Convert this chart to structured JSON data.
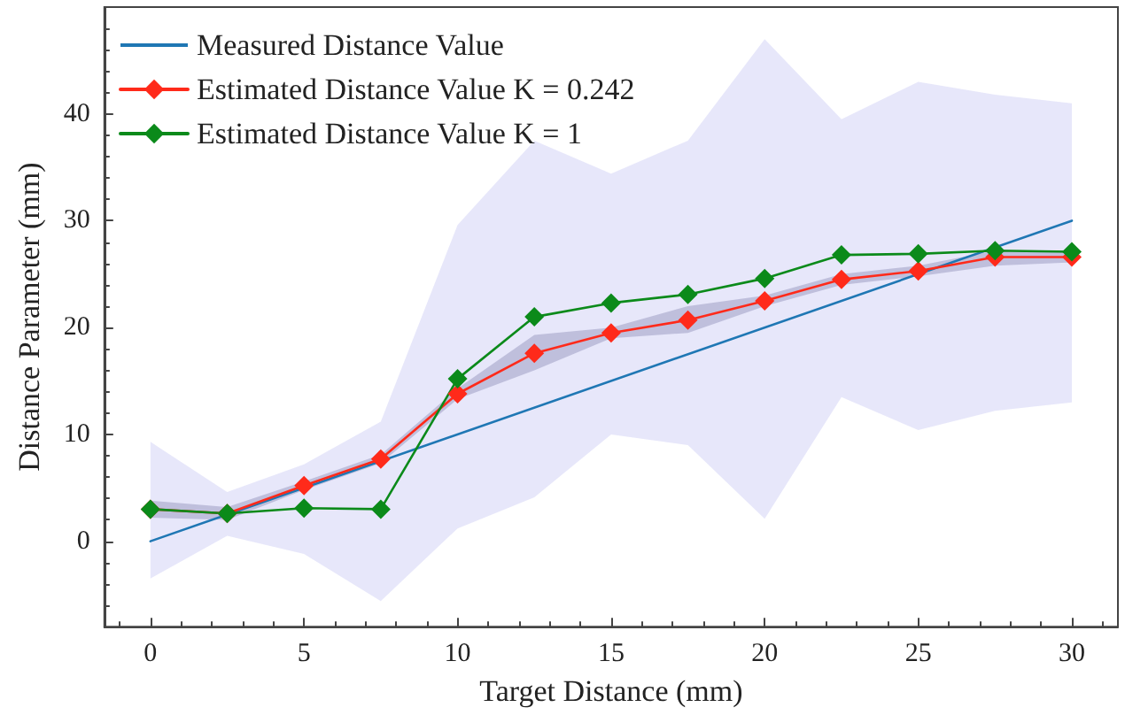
{
  "chart_data": {
    "type": "line",
    "xlabel": "Target Distance (mm)",
    "ylabel": "Distance Parameter (mm)",
    "x": [
      0,
      2.5,
      5,
      7.5,
      10,
      12.5,
      15,
      17.5,
      20,
      22.5,
      25,
      27.5,
      30
    ],
    "series": [
      {
        "name": "Measured Distance Value",
        "color": "#1f77b4",
        "marker": "none",
        "x": [
          0,
          30
        ],
        "values": [
          0,
          30
        ]
      },
      {
        "name": "Estimated Distance Value K = 0.242",
        "color": "#ff2a1a",
        "values": [
          3,
          2.6,
          5.2,
          7.7,
          13.8,
          17.6,
          19.5,
          20.7,
          22.5,
          24.5,
          25.3,
          26.6,
          26.6
        ],
        "lower": [
          2.2,
          2,
          4.8,
          7.3,
          13.3,
          16,
          19,
          19.5,
          22,
          24,
          24.8,
          25.8,
          26.1
        ],
        "upper": [
          3.8,
          3.2,
          5.6,
          8.1,
          14.3,
          19.3,
          20,
          22,
          23,
          25,
          25.8,
          27.2,
          27.2
        ]
      },
      {
        "name": "Estimated Distance Value K = 1",
        "color": "#0b8a1a",
        "values": [
          3,
          2.6,
          3.1,
          3,
          15.2,
          21,
          22.3,
          23.1,
          24.6,
          26.8,
          26.9,
          27.2,
          27.1
        ],
        "lower": [
          -3.5,
          0.5,
          -1.2,
          -5.6,
          1.2,
          4.1,
          10,
          9,
          2.1,
          13.5,
          10.4,
          12.2,
          13
        ],
        "upper": [
          9.3,
          4.6,
          7.2,
          11.2,
          29.6,
          37.5,
          34.4,
          37.5,
          47,
          39.5,
          43,
          41.8,
          41
        ]
      }
    ],
    "xlim": [
      -1.5,
      31.5
    ],
    "xticks": [
      0,
      5,
      10,
      15,
      20,
      25,
      30
    ],
    "ylim": [
      -8,
      50
    ],
    "yticks": [
      0,
      10,
      20,
      30,
      40
    ],
    "grid": false,
    "legend": "top left",
    "marker": "diamond",
    "line_style": "solid"
  }
}
